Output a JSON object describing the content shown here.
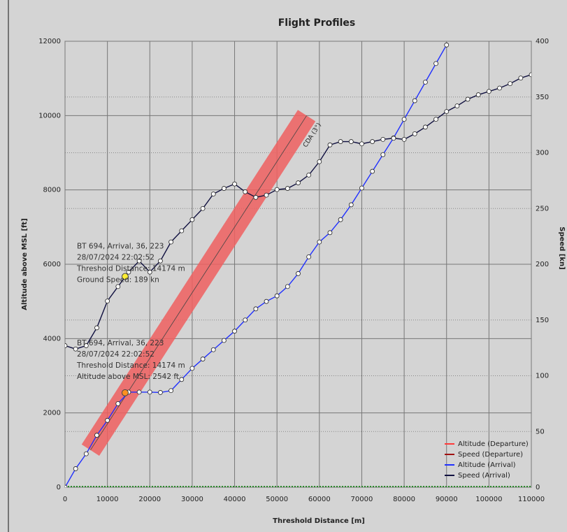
{
  "chart_data": {
    "type": "line",
    "title": "Flight Profiles",
    "x_label": "Threshold Distance [m]",
    "y_label": "Altitude above MSL [ft]",
    "y2_label": "Speed [kn]",
    "x": [
      0,
      2500,
      5000,
      7500,
      10000,
      12500,
      15000,
      17500,
      20000,
      22500,
      25000,
      27500,
      30000,
      32500,
      35000,
      37500,
      40000,
      42500,
      45000,
      47500,
      50000,
      52500,
      55000,
      57500,
      60000,
      62500,
      65000,
      67500,
      70000,
      72500,
      75000,
      77500,
      80000,
      82500,
      85000,
      87500,
      90000,
      92500,
      95000,
      97500,
      100000,
      102500,
      105000,
      107500,
      110000
    ],
    "series": [
      {
        "name": "Altitude (Departure)",
        "color": "#ff3a3a",
        "values": [
          null,
          null,
          null,
          null,
          null,
          null,
          null,
          null,
          null,
          null,
          null,
          null,
          null,
          null,
          null,
          null,
          null,
          null,
          null,
          null,
          null,
          null,
          null,
          null,
          null,
          null,
          null,
          null,
          null,
          null,
          null,
          null,
          null,
          null,
          null,
          null,
          null,
          null,
          null,
          null,
          null,
          null,
          null,
          null,
          null
        ]
      },
      {
        "name": "Speed (Departure)",
        "color": "#a01010",
        "axis": "y2",
        "values": [
          null,
          null,
          null,
          null,
          null,
          null,
          null,
          null,
          null,
          null,
          null,
          null,
          null,
          null,
          null,
          null,
          null,
          null,
          null,
          null,
          null,
          null,
          null,
          null,
          null,
          null,
          null,
          null,
          null,
          null,
          null,
          null,
          null,
          null,
          null,
          null,
          null,
          null,
          null,
          null,
          null,
          null,
          null,
          null,
          null
        ]
      },
      {
        "name": "Altitude (Arrival)",
        "color": "#2030ff",
        "values": [
          0,
          500,
          900,
          1400,
          1800,
          2250,
          2560,
          2560,
          2560,
          2550,
          2600,
          2900,
          3200,
          3450,
          3700,
          3950,
          4200,
          4500,
          4800,
          5000,
          5150,
          5400,
          5750,
          6200,
          6600,
          6850,
          7200,
          7600,
          8050,
          8500,
          8950,
          9400,
          9900,
          10400,
          10900,
          11400,
          11900,
          null,
          null,
          null,
          null,
          null,
          null,
          null,
          null
        ]
      },
      {
        "name": "Speed (Arrival)",
        "color": "#101040",
        "axis": "y2",
        "values": [
          127,
          124,
          127,
          143,
          167,
          180,
          193,
          203,
          193,
          203,
          220,
          230,
          240,
          250,
          263,
          268,
          272,
          265,
          260,
          262,
          267,
          268,
          273,
          280,
          292,
          307,
          310,
          310,
          308,
          310,
          312,
          313,
          312,
          317,
          323,
          330,
          337,
          342,
          348,
          352,
          355,
          358,
          362,
          367,
          370
        ]
      }
    ],
    "xlim": [
      0,
      110000
    ],
    "xticks": [
      0,
      10000,
      20000,
      30000,
      40000,
      50000,
      60000,
      70000,
      80000,
      90000,
      100000,
      110000
    ],
    "ylim": [
      0,
      12000
    ],
    "yticks": [
      0,
      2000,
      4000,
      6000,
      8000,
      10000,
      12000
    ],
    "y2lim": [
      0,
      400
    ],
    "y2ticks": [
      0,
      50,
      100,
      150,
      200,
      250,
      300,
      350,
      400
    ],
    "grid": true,
    "legend": "lower right",
    "band": {
      "label": "CDA (3°)",
      "x": [
        6000,
        57000
      ],
      "y": [
        1000,
        10000
      ],
      "color": "#f06060"
    },
    "tooltips": [
      {
        "x": 14174,
        "y": 189,
        "axis": "y2",
        "color": "#ffee33",
        "lines": [
          "BT 694, Arrival, 36, 223",
          "28/07/2024 22:02:52",
          "Threshold Distance: 14174 m",
          "Ground Speed: 189 kn"
        ]
      },
      {
        "x": 14174,
        "y": 2542,
        "color": "#ff9020",
        "lines": [
          "BT 694, Arrival, 36, 223",
          "28/07/2024 22:02:52",
          "Threshold Distance: 14174 m",
          "Altitude above MSL: 2542 ft"
        ]
      }
    ]
  }
}
